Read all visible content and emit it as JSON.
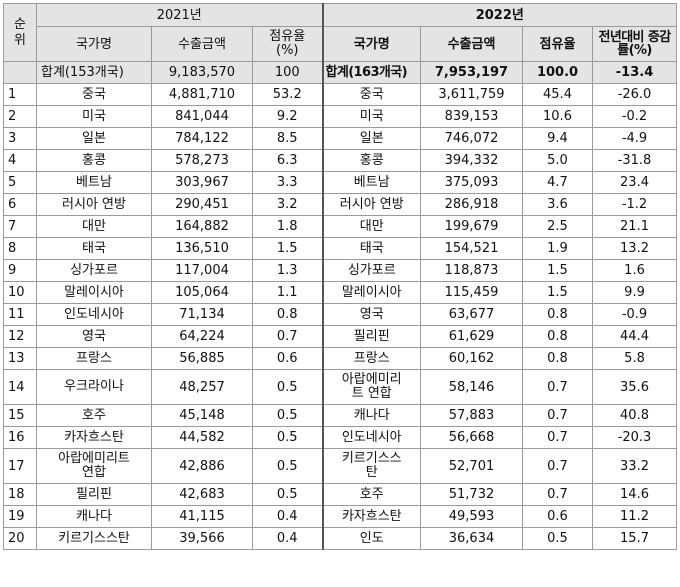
{
  "header": {
    "rank_label": "순위",
    "year_2021": "2021년",
    "year_2022": "2022년",
    "cols_2021": {
      "country": "국가명",
      "export": "수출금액",
      "share": "점유율 (%)"
    },
    "cols_2022": {
      "country": "국가명",
      "export": "수출금액",
      "share": "점유율",
      "change": "전년대비 증감률(%)"
    }
  },
  "totals": {
    "y2021": {
      "label": "합계(153개국)",
      "export": "9,183,570",
      "share": "100"
    },
    "y2022": {
      "label": "합계(163개국)",
      "export": "7,953,197",
      "share": "100.0",
      "change": "-13.4"
    }
  },
  "rows": [
    {
      "rank": "1",
      "c21": "중국",
      "e21": "4,881,710",
      "s21": "53.2",
      "c22": "중국",
      "e22": "3,611,759",
      "s22": "45.4",
      "ch": "-26.0"
    },
    {
      "rank": "2",
      "c21": "미국",
      "e21": "841,044",
      "s21": "9.2",
      "c22": "미국",
      "e22": "839,153",
      "s22": "10.6",
      "ch": "-0.2"
    },
    {
      "rank": "3",
      "c21": "일본",
      "e21": "784,122",
      "s21": "8.5",
      "c22": "일본",
      "e22": "746,072",
      "s22": "9.4",
      "ch": "-4.9"
    },
    {
      "rank": "4",
      "c21": "홍콩",
      "e21": "578,273",
      "s21": "6.3",
      "c22": "홍콩",
      "e22": "394,332",
      "s22": "5.0",
      "ch": "-31.8"
    },
    {
      "rank": "5",
      "c21": "베트남",
      "e21": "303,967",
      "s21": "3.3",
      "c22": "베트남",
      "e22": "375,093",
      "s22": "4.7",
      "ch": "23.4"
    },
    {
      "rank": "6",
      "c21": "러시아 연방",
      "e21": "290,451",
      "s21": "3.2",
      "c22": "러시아 연방",
      "e22": "286,918",
      "s22": "3.6",
      "ch": "-1.2"
    },
    {
      "rank": "7",
      "c21": "대만",
      "e21": "164,882",
      "s21": "1.8",
      "c22": "대만",
      "e22": "199,679",
      "s22": "2.5",
      "ch": "21.1"
    },
    {
      "rank": "8",
      "c21": "태국",
      "e21": "136,510",
      "s21": "1.5",
      "c22": "태국",
      "e22": "154,521",
      "s22": "1.9",
      "ch": "13.2"
    },
    {
      "rank": "9",
      "c21": "싱가포르",
      "e21": "117,004",
      "s21": "1.3",
      "c22": "싱가포르",
      "e22": "118,873",
      "s22": "1.5",
      "ch": "1.6"
    },
    {
      "rank": "10",
      "c21": "말레이시아",
      "e21": "105,064",
      "s21": "1.1",
      "c22": "말레이시아",
      "e22": "115,459",
      "s22": "1.5",
      "ch": "9.9"
    },
    {
      "rank": "11",
      "c21": "인도네시아",
      "e21": "71,134",
      "s21": "0.8",
      "c22": "영국",
      "e22": "63,677",
      "s22": "0.8",
      "ch": "-0.9"
    },
    {
      "rank": "12",
      "c21": "영국",
      "e21": "64,224",
      "s21": "0.7",
      "c22": "필리핀",
      "e22": "61,629",
      "s22": "0.8",
      "ch": "44.4"
    },
    {
      "rank": "13",
      "c21": "프랑스",
      "e21": "56,885",
      "s21": "0.6",
      "c22": "프랑스",
      "e22": "60,162",
      "s22": "0.8",
      "ch": "5.8"
    },
    {
      "rank": "14",
      "c21": "우크라이나",
      "e21": "48,257",
      "s21": "0.5",
      "c22": "아랍에미리트 연합",
      "e22": "58,146",
      "s22": "0.7",
      "ch": "35.6"
    },
    {
      "rank": "15",
      "c21": "호주",
      "e21": "45,148",
      "s21": "0.5",
      "c22": "캐나다",
      "e22": "57,883",
      "s22": "0.7",
      "ch": "40.8"
    },
    {
      "rank": "16",
      "c21": "카자흐스탄",
      "e21": "44,582",
      "s21": "0.5",
      "c22": "인도네시아",
      "e22": "56,668",
      "s22": "0.7",
      "ch": "-20.3"
    },
    {
      "rank": "17",
      "c21": "아랍에미리트 연합",
      "e21": "42,886",
      "s21": "0.5",
      "c22": "키르기스스탄",
      "e22": "52,701",
      "s22": "0.7",
      "ch": "33.2"
    },
    {
      "rank": "18",
      "c21": "필리핀",
      "e21": "42,683",
      "s21": "0.5",
      "c22": "호주",
      "e22": "51,732",
      "s22": "0.7",
      "ch": "14.6"
    },
    {
      "rank": "19",
      "c21": "캐나다",
      "e21": "41,115",
      "s21": "0.4",
      "c22": "카자흐스탄",
      "e22": "49,593",
      "s22": "0.6",
      "ch": "11.2"
    },
    {
      "rank": "20",
      "c21": "키르기스스탄",
      "e21": "39,566",
      "s21": "0.4",
      "c22": "인도",
      "e22": "36,634",
      "s22": "0.5",
      "ch": "15.7"
    }
  ]
}
